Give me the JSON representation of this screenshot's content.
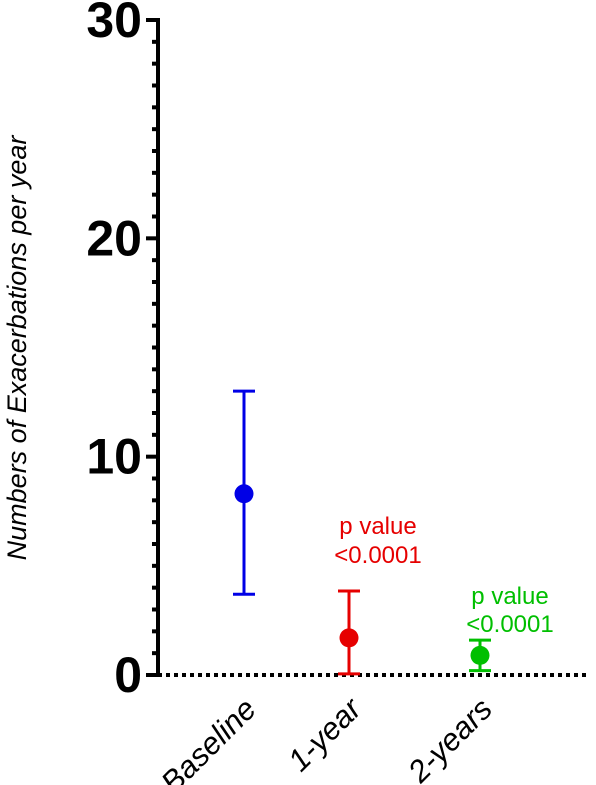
{
  "chart_data": {
    "type": "scatter",
    "title": "",
    "xlabel": "",
    "ylabel": "Numbers of Exacerbations per year",
    "ylim": [
      0,
      30
    ],
    "yticks": [
      0,
      10,
      20,
      30
    ],
    "categories": [
      "Baseline",
      "1-year",
      "2-years"
    ],
    "series": [
      {
        "category": "Baseline",
        "mean": 8.3,
        "low": 3.7,
        "high": 13.0,
        "color": "#0000e6"
      },
      {
        "category": "1-year",
        "mean": 1.7,
        "low": 0.05,
        "high": 3.85,
        "color": "#e60000"
      },
      {
        "category": "2-years",
        "mean": 0.9,
        "low": 0.2,
        "high": 1.6,
        "color": "#00bf00"
      }
    ],
    "annotations": [
      {
        "category": "1-year",
        "lines": [
          "p value",
          "<0.0001"
        ],
        "color": "#e60000"
      },
      {
        "category": "2-years",
        "lines": [
          "p value",
          "<0.0001"
        ],
        "color": "#00bf00"
      }
    ],
    "grid": false,
    "legend": "none"
  }
}
